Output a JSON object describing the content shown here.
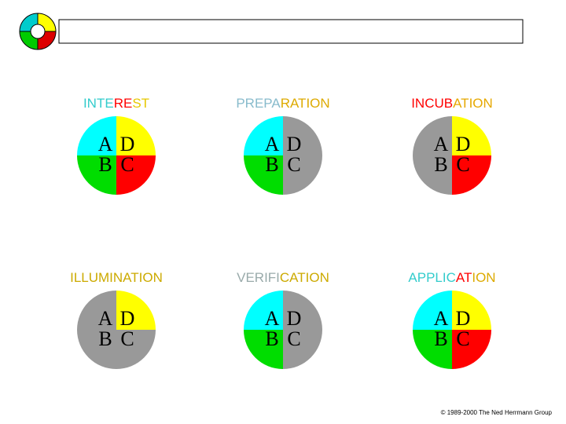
{
  "copyright": "© 1989-2000 The Ned Herrmann Group",
  "panels": [
    {
      "title": [
        {
          "text": "INTE",
          "color": "#33cccc"
        },
        {
          "text": "RE",
          "color": "#ff0000"
        },
        {
          "text": "ST",
          "color": "#e6c800"
        }
      ],
      "quadrants": [
        {
          "label": "A",
          "color": "#00ffff"
        },
        {
          "label": "D",
          "color": "#ffff00"
        },
        {
          "label": "B",
          "color": "#00dd00"
        },
        {
          "label": "C",
          "color": "#ff0000"
        }
      ]
    },
    {
      "title": [
        {
          "text": "PREPA",
          "color": "#88bbcc"
        },
        {
          "text": "RATION",
          "color": "#ddaa00"
        }
      ],
      "quadrants": [
        {
          "label": "A",
          "color": "#00ffff"
        },
        {
          "label": "D",
          "color": "#999999"
        },
        {
          "label": "B",
          "color": "#00dd00"
        },
        {
          "label": "C",
          "color": "#999999"
        }
      ]
    },
    {
      "title": [
        {
          "text": "INCUB",
          "color": "#ff0000"
        },
        {
          "text": "ATION",
          "color": "#e6a800"
        }
      ],
      "quadrants": [
        {
          "label": "A",
          "color": "#999999"
        },
        {
          "label": "D",
          "color": "#ffff00"
        },
        {
          "label": "B",
          "color": "#999999"
        },
        {
          "label": "C",
          "color": "#ff0000"
        }
      ]
    },
    {
      "title": [
        {
          "text": "ILLUMINATION",
          "color": "#ccaa00"
        }
      ],
      "quadrants": [
        {
          "label": "A",
          "color": "#999999"
        },
        {
          "label": "D",
          "color": "#ffff00"
        },
        {
          "label": "B",
          "color": "#999999"
        },
        {
          "label": "C",
          "color": "#999999"
        }
      ]
    },
    {
      "title": [
        {
          "text": "VERIFI",
          "color": "#99aaaa"
        },
        {
          "text": "CATION",
          "color": "#ccaa00"
        }
      ],
      "quadrants": [
        {
          "label": "A",
          "color": "#00ffff"
        },
        {
          "label": "D",
          "color": "#999999"
        },
        {
          "label": "B",
          "color": "#00dd00"
        },
        {
          "label": "C",
          "color": "#999999"
        }
      ]
    },
    {
      "title": [
        {
          "text": "APPLIC",
          "color": "#33cccc"
        },
        {
          "text": "AT",
          "color": "#ff0000"
        },
        {
          "text": "ION",
          "color": "#ddaa00"
        }
      ],
      "quadrants": [
        {
          "label": "A",
          "color": "#00ffff"
        },
        {
          "label": "D",
          "color": "#ffff00"
        },
        {
          "label": "B",
          "color": "#00dd00"
        },
        {
          "label": "C",
          "color": "#ff0000"
        }
      ]
    }
  ]
}
